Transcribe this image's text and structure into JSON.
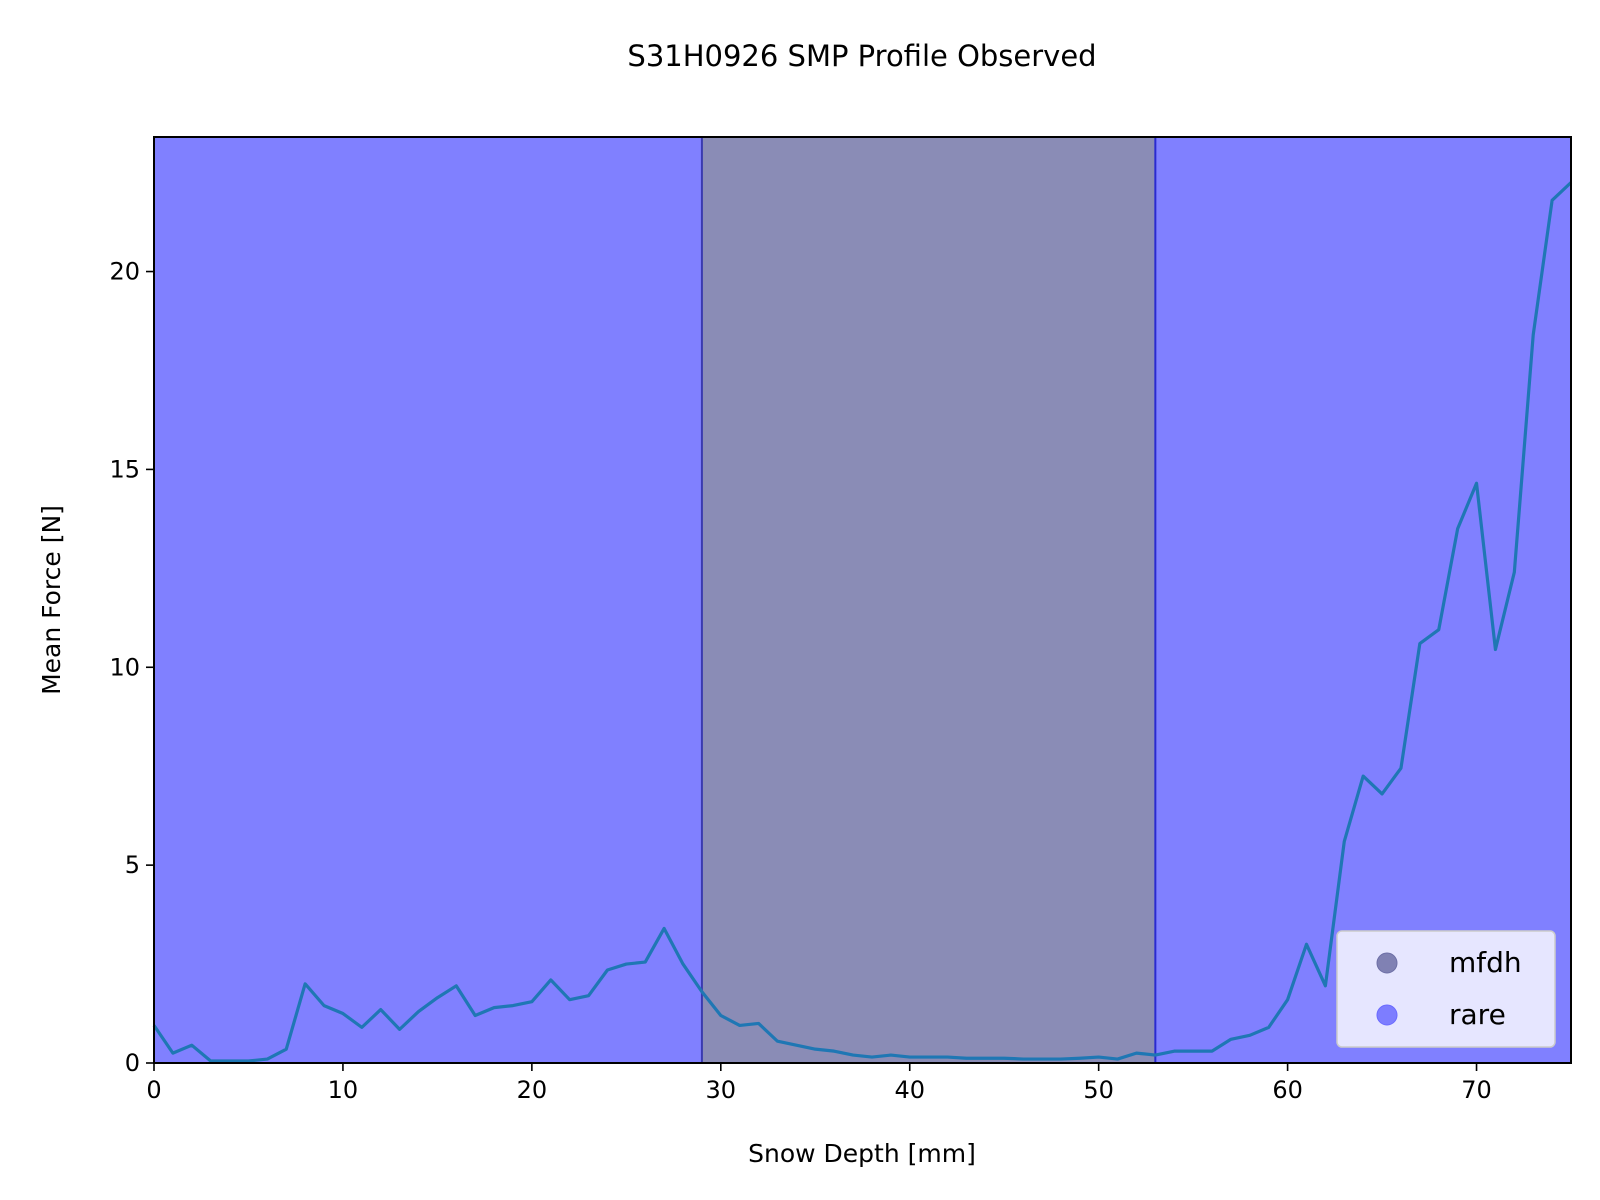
{
  "chart_data": {
    "type": "line",
    "title": "S31H0926 SMP Profile Observed",
    "xlabel": "Snow Depth [mm]",
    "ylabel": "Mean Force [N]",
    "xlim": [
      0,
      75
    ],
    "ylim": [
      0,
      23.4
    ],
    "x_ticks": [
      0,
      10,
      20,
      30,
      40,
      50,
      60,
      70
    ],
    "y_ticks": [
      0,
      5,
      10,
      15,
      20
    ],
    "grid": false,
    "legend_position": "lower-right",
    "line_color": "#1f77b4",
    "regions": [
      {
        "label": "rare",
        "x_start": 0,
        "x_end": 29,
        "color": "#8080ff",
        "edge_color": "#3a3ab0"
      },
      {
        "label": "mfdh",
        "x_start": 29,
        "x_end": 53,
        "color": "#8a8cb6",
        "edge_color": "#2a2ad0"
      },
      {
        "label": "rare",
        "x_start": 53,
        "x_end": 75,
        "color": "#8080ff",
        "edge_color": "#2a2ad0"
      }
    ],
    "legend": [
      {
        "label": "mfdh",
        "color": "#6d6fa6"
      },
      {
        "label": "rare",
        "color": "#6a6aff"
      }
    ],
    "x": [
      0,
      1,
      2,
      3,
      4,
      5,
      6,
      7,
      8,
      9,
      10,
      11,
      12,
      13,
      14,
      15,
      16,
      17,
      18,
      19,
      20,
      21,
      22,
      23,
      24,
      25,
      26,
      27,
      28,
      29,
      30,
      31,
      32,
      33,
      34,
      35,
      36,
      37,
      38,
      39,
      40,
      41,
      42,
      43,
      44,
      45,
      46,
      47,
      48,
      49,
      50,
      51,
      52,
      53,
      54,
      55,
      56,
      57,
      58,
      59,
      60,
      61,
      62,
      63,
      64,
      65,
      66,
      67,
      68,
      69,
      70,
      71,
      72,
      73,
      74,
      75
    ],
    "y": [
      0.95,
      0.25,
      0.45,
      0.05,
      0.05,
      0.05,
      0.1,
      0.35,
      2.0,
      1.45,
      1.25,
      0.9,
      1.35,
      0.85,
      1.3,
      1.65,
      1.95,
      1.2,
      1.4,
      1.45,
      1.55,
      2.1,
      1.6,
      1.7,
      2.35,
      2.5,
      2.55,
      3.4,
      2.5,
      1.8,
      1.2,
      0.95,
      1.0,
      0.55,
      0.45,
      0.35,
      0.3,
      0.2,
      0.15,
      0.2,
      0.15,
      0.15,
      0.15,
      0.12,
      0.12,
      0.12,
      0.1,
      0.1,
      0.1,
      0.12,
      0.15,
      0.1,
      0.25,
      0.2,
      0.3,
      0.3,
      0.3,
      0.6,
      0.7,
      0.9,
      1.6,
      3.0,
      1.95,
      5.6,
      7.25,
      6.8,
      7.45,
      10.6,
      10.95,
      13.5,
      14.65,
      10.45,
      12.4,
      18.4,
      21.8,
      22.25
    ]
  }
}
